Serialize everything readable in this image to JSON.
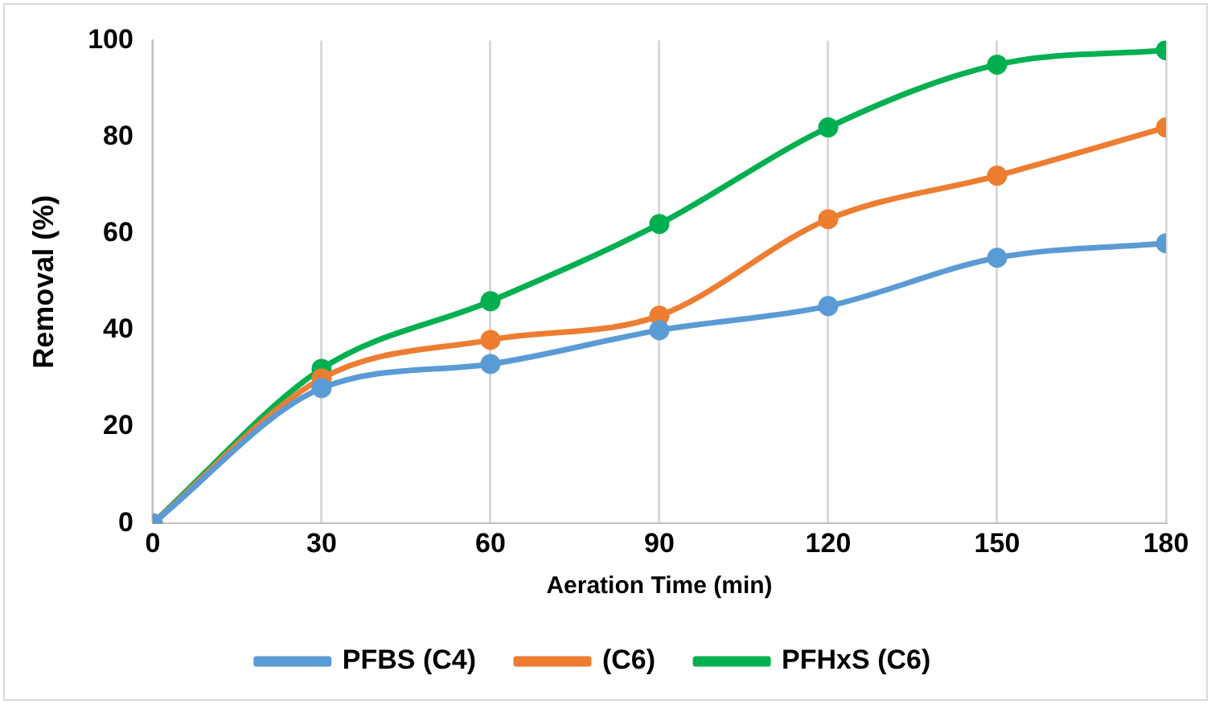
{
  "chart_data": {
    "type": "line",
    "xlabel": "Aeration Time (min)",
    "ylabel": "Removal (%)",
    "x": [
      0,
      30,
      60,
      90,
      120,
      150,
      180
    ],
    "series": [
      {
        "name": "PFBS (C4)",
        "color": "#5b9bd5",
        "values": [
          0,
          28,
          33,
          40,
          45,
          55,
          58
        ]
      },
      {
        "name": "(C6)",
        "color": "#ed7d31",
        "values": [
          0,
          30,
          38,
          43,
          63,
          72,
          82
        ]
      },
      {
        "name": "PFHxS (C6)",
        "color": "#00b050",
        "values": [
          0,
          32,
          46,
          62,
          82,
          95,
          98
        ]
      }
    ],
    "xlim": [
      0,
      180
    ],
    "xticks": [
      0,
      30,
      60,
      90,
      120,
      150,
      180
    ],
    "ylim": [
      0,
      100
    ],
    "yticks": [
      0,
      20,
      40,
      60,
      80,
      100
    ],
    "grid": "x",
    "legend": "bottom",
    "marker": "circle",
    "line_style": "solid"
  }
}
